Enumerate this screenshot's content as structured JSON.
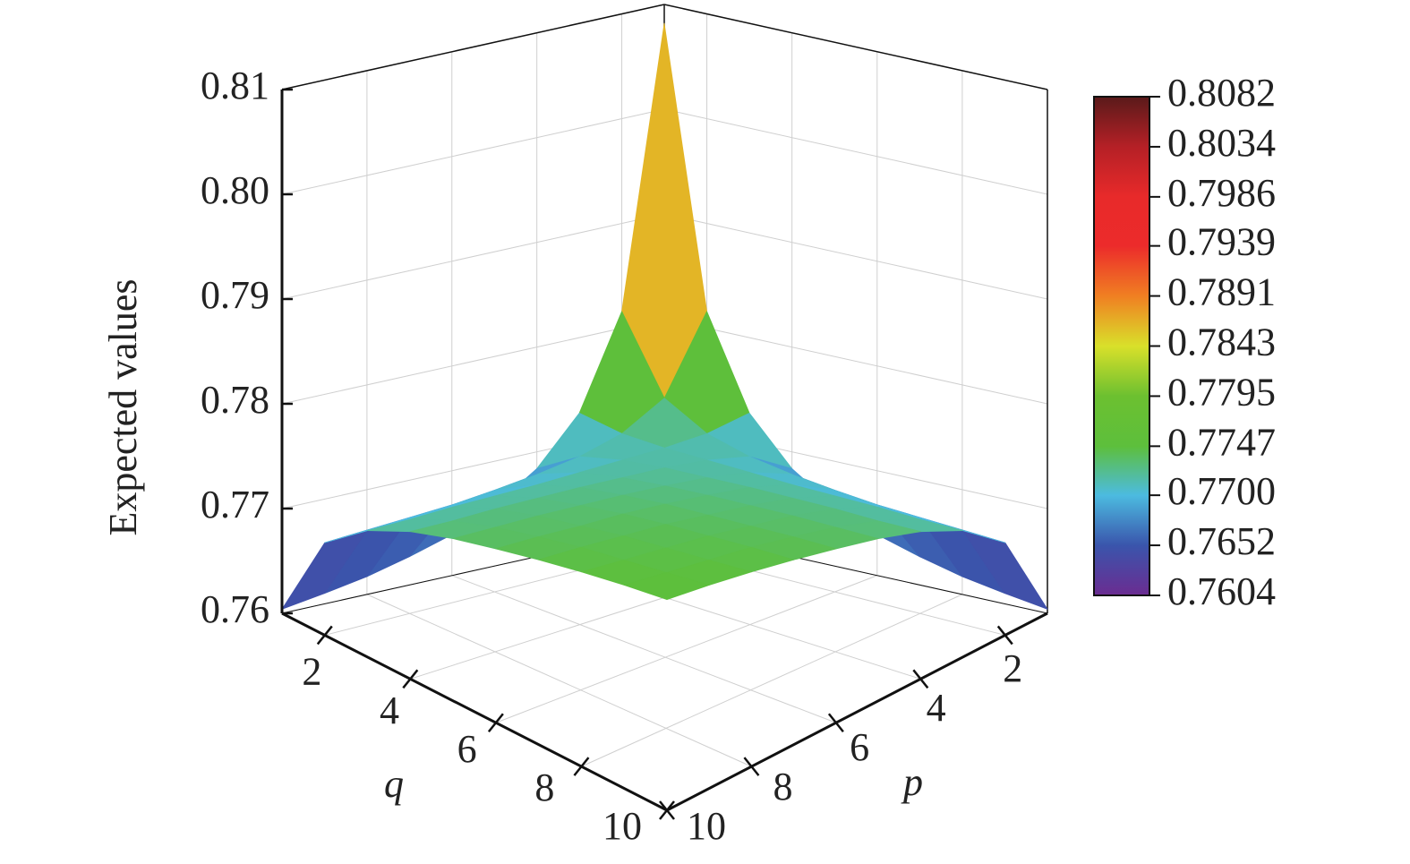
{
  "chart_data": {
    "type": "surface3d",
    "x_label": "p",
    "y_label": "q",
    "z_label": "Expected values",
    "x": [
      1,
      2,
      3,
      4,
      5,
      6,
      7,
      8,
      9,
      10
    ],
    "y": [
      1,
      2,
      3,
      4,
      5,
      6,
      7,
      8,
      9,
      10
    ],
    "z": [
      [
        0.8082,
        0.7816,
        0.7728,
        0.7684,
        0.7657,
        0.7639,
        0.7627,
        0.7617,
        0.761,
        0.7604
      ],
      [
        0.7816,
        0.7743,
        0.7719,
        0.7707,
        0.77,
        0.7695,
        0.7691,
        0.7689,
        0.7687,
        0.7685
      ],
      [
        0.7728,
        0.7719,
        0.7716,
        0.7715,
        0.7714,
        0.7713,
        0.7713,
        0.7713,
        0.7712,
        0.7712
      ],
      [
        0.7684,
        0.7707,
        0.7715,
        0.7719,
        0.7721,
        0.7723,
        0.7724,
        0.7725,
        0.7725,
        0.7726
      ],
      [
        0.7657,
        0.77,
        0.7714,
        0.7721,
        0.7725,
        0.7728,
        0.773,
        0.7732,
        0.7733,
        0.7734
      ],
      [
        0.7639,
        0.7695,
        0.7713,
        0.7723,
        0.7728,
        0.7732,
        0.7734,
        0.7736,
        0.7738,
        0.7739
      ],
      [
        0.7627,
        0.7691,
        0.7713,
        0.7724,
        0.773,
        0.7735,
        0.7738,
        0.774,
        0.7742,
        0.7743
      ],
      [
        0.7617,
        0.7689,
        0.7713,
        0.7725,
        0.7732,
        0.7736,
        0.774,
        0.7742,
        0.7744,
        0.7746
      ],
      [
        0.761,
        0.7687,
        0.7712,
        0.7725,
        0.7733,
        0.7738,
        0.7742,
        0.7744,
        0.7746,
        0.7748
      ],
      [
        0.7604,
        0.7685,
        0.7712,
        0.7726,
        0.7734,
        0.7739,
        0.7743,
        0.7746,
        0.7748,
        0.7749
      ]
    ],
    "xlim": [
      1,
      10
    ],
    "ylim": [
      1,
      10
    ],
    "zlim": [
      0.76,
      0.81
    ],
    "xticks": [
      2,
      4,
      6,
      8,
      10
    ],
    "yticks": [
      2,
      4,
      6,
      8,
      10
    ],
    "zticks": [
      0.76,
      0.77,
      0.78,
      0.79,
      {
        "value": 0.8,
        "label": "0.80"
      },
      0.81
    ],
    "grid": true,
    "colorbar": {
      "ticks": [
        0.7604,
        0.7652,
        {
          "value": 0.77,
          "label": "0.7700"
        },
        0.7747,
        0.7795,
        0.7843,
        0.7891,
        0.7939,
        0.7986,
        0.8034,
        0.8082
      ],
      "colors": [
        "#6b2c91",
        "#3a55ac",
        "#4cbbe0",
        "#5dbf3c",
        "#6cc030",
        "#d9e02a",
        "#f07f22",
        "#ec2b2b",
        "#e82a2a",
        "#b52026",
        "#5a1a1a"
      ]
    }
  }
}
